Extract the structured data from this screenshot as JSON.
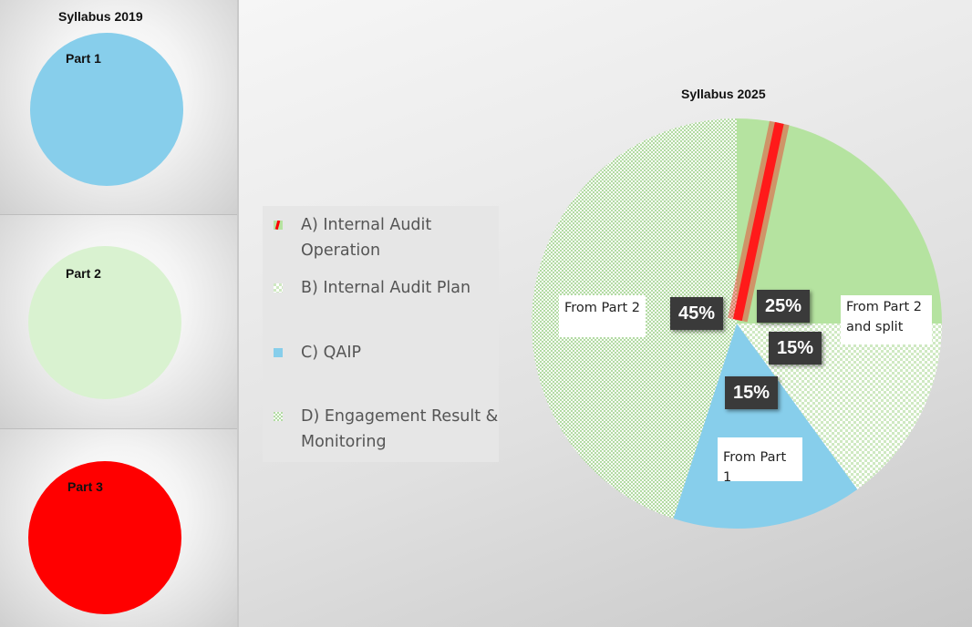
{
  "syllabus_2019": {
    "title": "Syllabus 2019",
    "parts": [
      {
        "label": "Part 1",
        "color": "#87ceeb"
      },
      {
        "label": "Part 2",
        "color": "#d9f2d0"
      },
      {
        "label": "Part 3",
        "color": "#ff0000"
      }
    ]
  },
  "syllabus_2025": {
    "title": "Syllabus 2025",
    "slice_labels": [
      "From Part 2",
      "From Part 2\nand split",
      "From Part 1"
    ]
  },
  "chart_data": {
    "type": "pie",
    "title": "Syllabus 2025",
    "legend_position": "left",
    "series": [
      {
        "name": "A) Internal Audit Operation",
        "value": 25,
        "color": "#b5e3a0",
        "pattern": "solid with red stripe"
      },
      {
        "name": "B) Internal Audit Plan",
        "value": 15,
        "color": "#d9f2d0",
        "pattern": "checker"
      },
      {
        "name": "C) QAIP",
        "value": 15,
        "color": "#87ceeb",
        "pattern": "solid"
      },
      {
        "name": "D) Engagement Result & Monitoring",
        "value": 45,
        "color": "#b5e3a0",
        "pattern": "dotted"
      }
    ],
    "data_labels": [
      "25%",
      "15%",
      "15%",
      "45%"
    ]
  }
}
